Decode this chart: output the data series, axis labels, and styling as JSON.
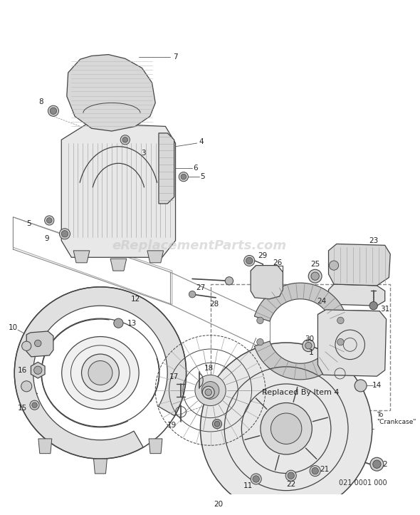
{
  "background_color": "#ffffff",
  "watermark_text": "eReplacementParts.com",
  "watermark_color": "#c8c8c8",
  "watermark_fontsize": 13,
  "part_number_text": "021 0001 000",
  "part_number_fontsize": 7,
  "replaced_by_text": "Replaced By Item 4",
  "replaced_by_fontsize": 8,
  "line_color": "#444444",
  "label_fontsize": 7.5
}
